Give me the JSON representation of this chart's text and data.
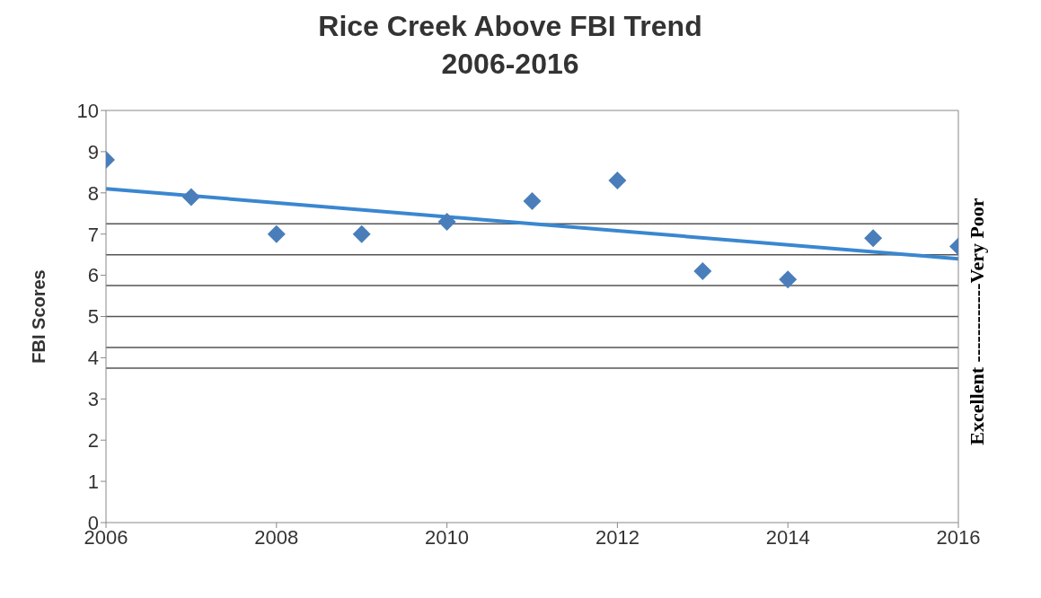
{
  "chart_data": {
    "type": "scatter",
    "title": "Rice Creek Above FBI Trend\n2006-2016",
    "ylabel": "FBI Scores",
    "x": [
      2006,
      2007,
      2008,
      2009,
      2010,
      2011,
      2012,
      2013,
      2014,
      2015,
      2016
    ],
    "series": [
      {
        "color": "#4a7ebb",
        "marker": "diamond",
        "values": [
          8.8,
          7.9,
          7.0,
          7.0,
          7.3,
          7.8,
          8.3,
          6.1,
          5.9,
          6.9,
          6.7
        ]
      },
      {
        "type": "line",
        "color": "#3a87d0",
        "marker": "none",
        "x": [
          2006,
          2016
        ],
        "values": [
          8.1,
          6.4
        ]
      }
    ],
    "xlim": [
      2006,
      2016
    ],
    "xticks": [
      2006,
      2008,
      2010,
      2012,
      2014,
      2016
    ],
    "ylim": [
      0,
      10
    ],
    "yticks": [
      0,
      1,
      2,
      3,
      4,
      5,
      6,
      7,
      8,
      9,
      10
    ],
    "ref_lines": [
      {
        "axis": "y",
        "value": 7.25,
        "color": "#555555"
      },
      {
        "axis": "y",
        "value": 6.5,
        "color": "#555555"
      },
      {
        "axis": "y",
        "value": 5.75,
        "color": "#555555"
      },
      {
        "axis": "y",
        "value": 5.0,
        "color": "#555555"
      },
      {
        "axis": "y",
        "value": 4.25,
        "color": "#555555"
      },
      {
        "axis": "y",
        "value": 3.75,
        "color": "#555555"
      }
    ],
    "annotations": [
      "Excellent ------------Very Poor"
    ]
  }
}
